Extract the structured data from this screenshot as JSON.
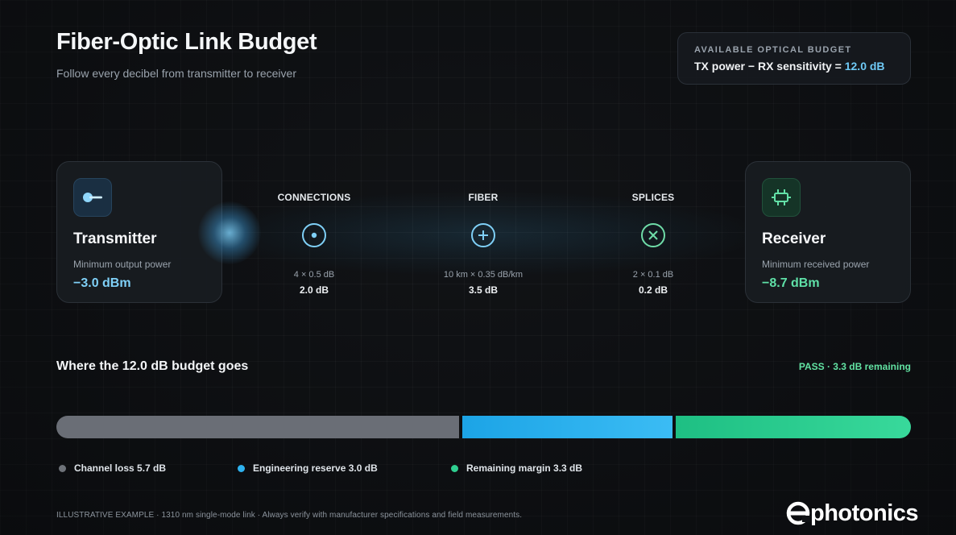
{
  "header": {
    "title": "Fiber-Optic Link Budget",
    "subtitle": "Follow every decibel from transmitter to receiver"
  },
  "budget_box": {
    "kicker": "AVAILABLE OPTICAL BUDGET",
    "formula": "TX power − RX sensitivity = ",
    "value": "12.0 dB"
  },
  "transmitter": {
    "name": "Transmitter",
    "label": "Minimum output power",
    "value": "−3.0 dBm",
    "icon": "laser-source-icon"
  },
  "receiver": {
    "name": "Receiver",
    "label": "Minimum received power",
    "value": "−8.7 dBm",
    "icon": "photodetector-icon"
  },
  "stages": [
    {
      "label": "CONNECTIONS",
      "calc": "4 × 0.5 dB",
      "value": "2.0 dB",
      "icon": "connector-icon"
    },
    {
      "label": "FIBER",
      "calc": "10 km × 0.35 dB/km",
      "value": "3.5 dB",
      "icon": "fiber-plus-icon"
    },
    {
      "label": "SPLICES",
      "calc": "2 × 0.1 dB",
      "value": "0.2 dB",
      "icon": "splice-x-icon"
    }
  ],
  "breakdown": {
    "title": "Where the 12.0 dB budget goes",
    "status": "PASS · 3.3 dB remaining",
    "total_db": 12.0,
    "segments": [
      {
        "key": "loss",
        "label": "Channel loss 5.7 dB",
        "db": 5.7,
        "color": "#6a6e76"
      },
      {
        "key": "reserve",
        "label": "Engineering reserve 3.0 dB",
        "db": 3.0,
        "color": "#2eb2ef"
      },
      {
        "key": "margin",
        "label": "Remaining margin 3.3 dB",
        "db": 3.3,
        "color": "#2fcf90"
      }
    ]
  },
  "footnote": "ILLUSTRATIVE EXAMPLE · 1310 nm single-mode link · Always verify with manufacturer specifications and field measurements.",
  "brand": {
    "name": "photonics",
    "logo_icon": "e-logo-icon"
  },
  "colors": {
    "accent_blue": "#6ec9f5",
    "accent_green": "#5fe0a7",
    "background": "#111316"
  }
}
